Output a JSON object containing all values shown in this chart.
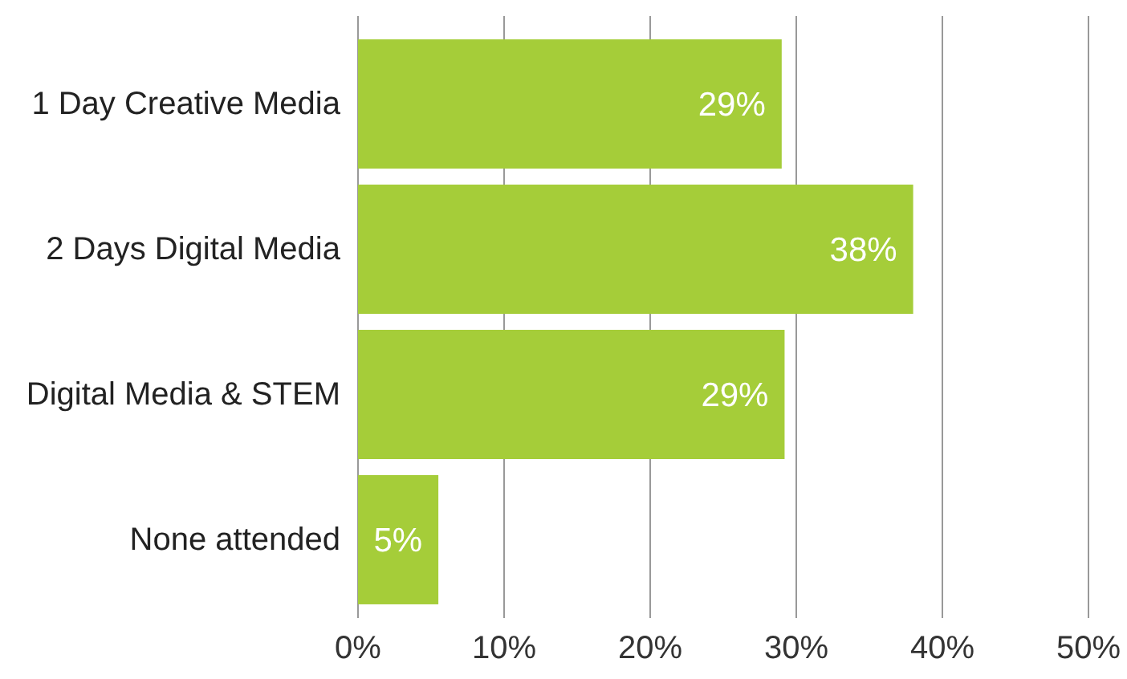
{
  "chart_data": {
    "type": "bar",
    "orientation": "horizontal",
    "categories": [
      "1 Day Creative Media",
      "2 Days Digital Media",
      "Digital Media & STEM",
      "None attended"
    ],
    "values": [
      29,
      38,
      29.2,
      5.5
    ],
    "value_labels": [
      "29%",
      "38%",
      "29%",
      "5%"
    ],
    "color": "#a5cd39",
    "xlim": [
      0,
      50
    ],
    "xticks": [
      {
        "value": 0,
        "label": "0%"
      },
      {
        "value": 10,
        "label": "10%"
      },
      {
        "value": 20,
        "label": "20%"
      },
      {
        "value": 30,
        "label": "30%"
      },
      {
        "value": 40,
        "label": "40%"
      },
      {
        "value": 50,
        "label": "50%"
      }
    ],
    "grid": "x"
  }
}
